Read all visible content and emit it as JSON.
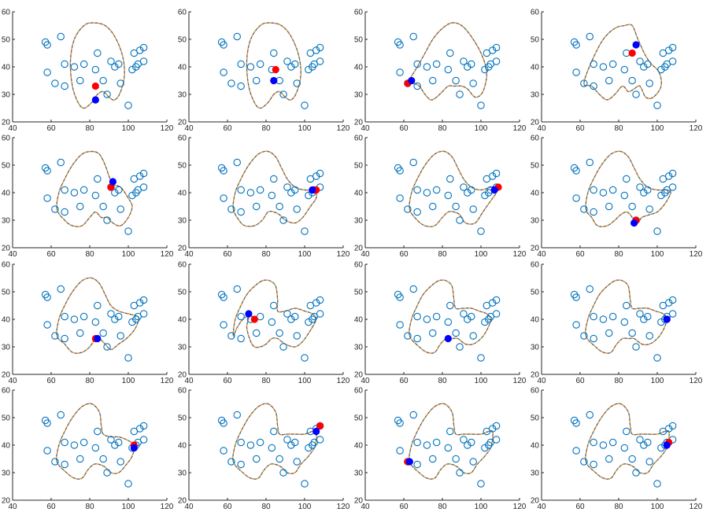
{
  "chart_data": {
    "type": "scatter",
    "layout": "4x4 small multiples",
    "xlim": [
      40,
      120
    ],
    "ylim": [
      20,
      60
    ],
    "x_ticks": [
      40,
      60,
      80,
      100,
      120
    ],
    "y_ticks": [
      20,
      30,
      40,
      50,
      60
    ],
    "grid": false,
    "points": [
      [
        57,
        49
      ],
      [
        58,
        48
      ],
      [
        58,
        38
      ],
      [
        62,
        34
      ],
      [
        65,
        51
      ],
      [
        67,
        41
      ],
      [
        67,
        33
      ],
      [
        72,
        40
      ],
      [
        75,
        35
      ],
      [
        77,
        41
      ],
      [
        83,
        39
      ],
      [
        84,
        45
      ],
      [
        87,
        35
      ],
      [
        89,
        30
      ],
      [
        91,
        42
      ],
      [
        93,
        40
      ],
      [
        95,
        41
      ],
      [
        96,
        34
      ],
      [
        100,
        26
      ],
      [
        102,
        39
      ],
      [
        103,
        45
      ],
      [
        104,
        40
      ],
      [
        105,
        41
      ],
      [
        106,
        46
      ],
      [
        108,
        47
      ],
      [
        108,
        42
      ]
    ],
    "colors": {
      "points": "#0072BD",
      "curve_1": "#D95319",
      "curve_2": "#0072BD",
      "curve_3": "#EDB120",
      "red_marker": "#ff0000",
      "blue_marker": "#0000ff"
    },
    "panels": [
      {
        "curve": "c1",
        "red": [
          83,
          33
        ],
        "blue": [
          83,
          28
        ]
      },
      {
        "curve": "c1",
        "red": [
          85,
          39
        ],
        "blue": [
          84,
          35
        ]
      },
      {
        "curve": "c2",
        "red": [
          62,
          34
        ],
        "blue": [
          64,
          35
        ]
      },
      {
        "curve": "c3",
        "red": [
          87,
          45
        ],
        "blue": [
          89,
          48
        ]
      },
      {
        "curve": "c4",
        "red": [
          91,
          42
        ],
        "blue": [
          92,
          44
        ]
      },
      {
        "curve": "c5",
        "red": [
          106,
          41
        ],
        "blue": [
          104,
          41
        ]
      },
      {
        "curve": "c6",
        "red": [
          109,
          42
        ],
        "blue": [
          107,
          41
        ]
      },
      {
        "curve": "c7",
        "red": [
          89,
          30
        ],
        "blue": [
          88,
          29
        ]
      },
      {
        "curve": "c8",
        "red": [
          83,
          33
        ],
        "blue": [
          84,
          33
        ]
      },
      {
        "curve": "c9",
        "red": [
          74,
          40
        ],
        "blue": [
          71,
          42
        ]
      },
      {
        "curve": "c10",
        "red": null,
        "blue": [
          83,
          33
        ]
      },
      {
        "curve": "c10",
        "red": [
          105,
          40
        ],
        "blue": [
          105,
          40
        ]
      },
      {
        "curve": "c11",
        "red": [
          103,
          40
        ],
        "blue": [
          103,
          39
        ]
      },
      {
        "curve": "c12",
        "red": [
          108,
          47
        ],
        "blue": [
          106,
          45
        ]
      },
      {
        "curve": "c12",
        "red": [
          62,
          34
        ],
        "blue": [
          63,
          34
        ]
      },
      {
        "curve": "c12",
        "red": [
          106,
          41
        ],
        "blue": [
          105,
          40
        ]
      }
    ],
    "curves": {
      "c1": [
        [
          71,
          33
        ],
        [
          70,
          42
        ],
        [
          72,
          50
        ],
        [
          77,
          55
        ],
        [
          82,
          56
        ],
        [
          88,
          55
        ],
        [
          93,
          51
        ],
        [
          97,
          44
        ],
        [
          98,
          37
        ],
        [
          96,
          31
        ],
        [
          93,
          28
        ],
        [
          90,
          29
        ],
        [
          87,
          31
        ],
        [
          84,
          30
        ],
        [
          81,
          27
        ],
        [
          77,
          25
        ],
        [
          74,
          27
        ],
        [
          71,
          33
        ]
      ],
      "c2": [
        [
          62,
          34
        ],
        [
          67,
          40
        ],
        [
          71,
          45
        ],
        [
          75,
          50
        ],
        [
          80,
          54
        ],
        [
          85,
          56
        ],
        [
          90,
          55
        ],
        [
          95,
          51
        ],
        [
          100,
          45
        ],
        [
          103,
          38
        ],
        [
          101,
          31
        ],
        [
          97,
          29
        ],
        [
          93,
          32
        ],
        [
          90,
          33
        ],
        [
          86,
          33
        ],
        [
          83,
          33
        ],
        [
          80,
          31
        ],
        [
          77,
          29
        ],
        [
          74,
          28
        ],
        [
          71,
          30
        ],
        [
          68,
          33
        ],
        [
          65,
          34
        ],
        [
          62,
          34
        ]
      ],
      "c3": [
        [
          62,
          34
        ],
        [
          66,
          42
        ],
        [
          72,
          50
        ],
        [
          78,
          54
        ],
        [
          83,
          55
        ],
        [
          87,
          55
        ],
        [
          90,
          50
        ],
        [
          94,
          44
        ],
        [
          97,
          41
        ],
        [
          101,
          38
        ],
        [
          102,
          33
        ],
        [
          98,
          29
        ],
        [
          94,
          29
        ],
        [
          91,
          33
        ],
        [
          88,
          32
        ],
        [
          85,
          31
        ],
        [
          82,
          33
        ],
        [
          78,
          30
        ],
        [
          74,
          28
        ],
        [
          70,
          30
        ],
        [
          66,
          33
        ],
        [
          62,
          34
        ]
      ],
      "c4": [
        [
          63,
          34
        ],
        [
          64,
          40
        ],
        [
          67,
          45
        ],
        [
          71,
          50
        ],
        [
          76,
          54
        ],
        [
          81,
          55
        ],
        [
          85,
          54
        ],
        [
          88,
          50
        ],
        [
          90,
          46
        ],
        [
          92,
          43
        ],
        [
          96,
          42
        ],
        [
          100,
          38
        ],
        [
          102,
          35
        ],
        [
          100,
          31
        ],
        [
          96,
          28
        ],
        [
          92,
          29
        ],
        [
          89,
          31
        ],
        [
          86,
          31
        ],
        [
          83,
          33
        ],
        [
          80,
          31
        ],
        [
          76,
          28
        ],
        [
          71,
          28
        ],
        [
          67,
          30
        ],
        [
          63,
          34
        ]
      ],
      "c5": [
        [
          63,
          34
        ],
        [
          64,
          40
        ],
        [
          67,
          45
        ],
        [
          71,
          50
        ],
        [
          76,
          54
        ],
        [
          81,
          55
        ],
        [
          85,
          53
        ],
        [
          88,
          49
        ],
        [
          91,
          45
        ],
        [
          95,
          42
        ],
        [
          100,
          41
        ],
        [
          104,
          41
        ],
        [
          106,
          41
        ],
        [
          106,
          38
        ],
        [
          103,
          35
        ],
        [
          99,
          31
        ],
        [
          95,
          29
        ],
        [
          90,
          30
        ],
        [
          87,
          32
        ],
        [
          84,
          33
        ],
        [
          81,
          33
        ],
        [
          78,
          30
        ],
        [
          74,
          28
        ],
        [
          69,
          28
        ],
        [
          66,
          30
        ],
        [
          63,
          34
        ]
      ],
      "c6": [
        [
          63,
          34
        ],
        [
          64,
          40
        ],
        [
          67,
          45
        ],
        [
          71,
          50
        ],
        [
          76,
          54
        ],
        [
          81,
          55
        ],
        [
          85,
          53
        ],
        [
          88,
          49
        ],
        [
          91,
          45
        ],
        [
          95,
          42
        ],
        [
          100,
          41
        ],
        [
          105,
          42
        ],
        [
          108,
          42
        ],
        [
          108,
          40
        ],
        [
          105,
          37
        ],
        [
          101,
          33
        ],
        [
          97,
          29
        ],
        [
          92,
          29
        ],
        [
          89,
          32
        ],
        [
          86,
          33
        ],
        [
          83,
          33
        ],
        [
          80,
          31
        ],
        [
          76,
          28
        ],
        [
          71,
          28
        ],
        [
          67,
          30
        ],
        [
          63,
          34
        ]
      ],
      "c7": [
        [
          63,
          34
        ],
        [
          64,
          40
        ],
        [
          67,
          45
        ],
        [
          71,
          50
        ],
        [
          76,
          54
        ],
        [
          81,
          55
        ],
        [
          85,
          53
        ],
        [
          88,
          49
        ],
        [
          91,
          45
        ],
        [
          95,
          42
        ],
        [
          100,
          41
        ],
        [
          105,
          41
        ],
        [
          107,
          40
        ],
        [
          104,
          36
        ],
        [
          100,
          33
        ],
        [
          96,
          32
        ],
        [
          92,
          31
        ],
        [
          90,
          29
        ],
        [
          88,
          30
        ],
        [
          86,
          32
        ],
        [
          84,
          33
        ],
        [
          81,
          32
        ],
        [
          78,
          30
        ],
        [
          74,
          28
        ],
        [
          69,
          28
        ],
        [
          66,
          31
        ],
        [
          63,
          34
        ]
      ],
      "c8": [
        [
          63,
          34
        ],
        [
          64,
          40
        ],
        [
          67,
          45
        ],
        [
          71,
          50
        ],
        [
          76,
          54
        ],
        [
          81,
          55
        ],
        [
          85,
          53
        ],
        [
          88,
          49
        ],
        [
          91,
          45
        ],
        [
          95,
          43
        ],
        [
          100,
          42
        ],
        [
          105,
          41
        ],
        [
          105,
          39
        ],
        [
          103,
          36
        ],
        [
          99,
          33
        ],
        [
          95,
          31
        ],
        [
          91,
          29
        ],
        [
          88,
          31
        ],
        [
          85,
          33
        ],
        [
          83,
          33
        ],
        [
          80,
          30
        ],
        [
          76,
          28
        ],
        [
          71,
          28
        ],
        [
          67,
          31
        ],
        [
          63,
          34
        ]
      ],
      "c9": [
        [
          63,
          34
        ],
        [
          64,
          40
        ],
        [
          67,
          45
        ],
        [
          70,
          49
        ],
        [
          74,
          52
        ],
        [
          78,
          54
        ],
        [
          82,
          54
        ],
        [
          85,
          52
        ],
        [
          86,
          47
        ],
        [
          86,
          43
        ],
        [
          90,
          43
        ],
        [
          95,
          44
        ],
        [
          100,
          43
        ],
        [
          104,
          42
        ],
        [
          106,
          40
        ],
        [
          103,
          36
        ],
        [
          99,
          32
        ],
        [
          95,
          30
        ],
        [
          90,
          31
        ],
        [
          86,
          33
        ],
        [
          83,
          33
        ],
        [
          80,
          31
        ],
        [
          77,
          30
        ],
        [
          74,
          30
        ],
        [
          72,
          32
        ],
        [
          70,
          37
        ],
        [
          71,
          41
        ],
        [
          68,
          40
        ],
        [
          65,
          37
        ],
        [
          63,
          34
        ]
      ],
      "c10": [
        [
          63,
          34
        ],
        [
          64,
          40
        ],
        [
          67,
          45
        ],
        [
          70,
          49
        ],
        [
          74,
          52
        ],
        [
          78,
          54
        ],
        [
          82,
          54
        ],
        [
          85,
          52
        ],
        [
          86,
          47
        ],
        [
          87,
          44
        ],
        [
          91,
          44
        ],
        [
          95,
          44
        ],
        [
          99,
          43
        ],
        [
          103,
          42
        ],
        [
          105,
          40
        ],
        [
          103,
          36
        ],
        [
          100,
          33
        ],
        [
          96,
          31
        ],
        [
          92,
          31
        ],
        [
          88,
          33
        ],
        [
          85,
          33
        ],
        [
          82,
          33
        ],
        [
          79,
          31
        ],
        [
          76,
          28
        ],
        [
          72,
          28
        ],
        [
          68,
          30
        ],
        [
          63,
          34
        ]
      ],
      "c11": [
        [
          63,
          34
        ],
        [
          64,
          40
        ],
        [
          67,
          45
        ],
        [
          71,
          50
        ],
        [
          76,
          54
        ],
        [
          81,
          55
        ],
        [
          85,
          52
        ],
        [
          86,
          47
        ],
        [
          87,
          44
        ],
        [
          91,
          43
        ],
        [
          95,
          43
        ],
        [
          99,
          42
        ],
        [
          103,
          40
        ],
        [
          102,
          36
        ],
        [
          99,
          33
        ],
        [
          95,
          30
        ],
        [
          91,
          30
        ],
        [
          88,
          32
        ],
        [
          85,
          33
        ],
        [
          82,
          33
        ],
        [
          79,
          31
        ],
        [
          76,
          28
        ],
        [
          72,
          28
        ],
        [
          68,
          30
        ],
        [
          63,
          34
        ]
      ],
      "c12": [
        [
          63,
          34
        ],
        [
          64,
          40
        ],
        [
          67,
          45
        ],
        [
          71,
          50
        ],
        [
          76,
          54
        ],
        [
          81,
          55
        ],
        [
          85,
          52
        ],
        [
          86,
          47
        ],
        [
          87,
          44
        ],
        [
          91,
          44
        ],
        [
          95,
          44
        ],
        [
          100,
          44
        ],
        [
          104,
          45
        ],
        [
          106,
          45
        ],
        [
          106,
          42
        ],
        [
          105,
          39
        ],
        [
          102,
          36
        ],
        [
          98,
          33
        ],
        [
          95,
          30
        ],
        [
          91,
          30
        ],
        [
          88,
          32
        ],
        [
          85,
          33
        ],
        [
          82,
          33
        ],
        [
          79,
          31
        ],
        [
          76,
          28
        ],
        [
          72,
          28
        ],
        [
          68,
          30
        ],
        [
          63,
          34
        ]
      ]
    }
  }
}
